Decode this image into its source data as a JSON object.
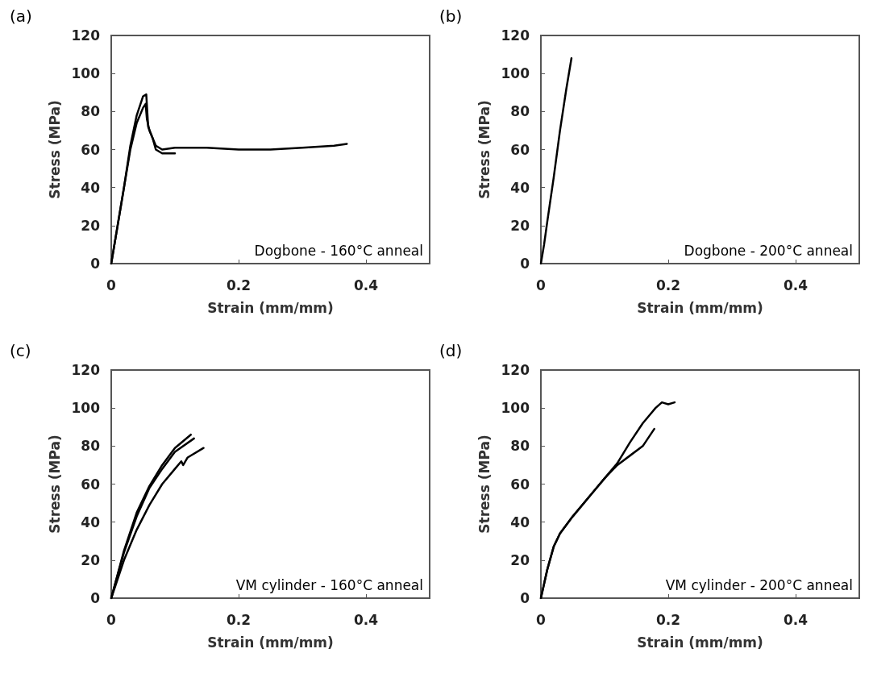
{
  "chart_data": [
    {
      "type": "line",
      "xlabel": "Strain (mm/mm)",
      "ylabel": "Stress (MPa)",
      "annotations": [
        "(a)",
        "Dogbone - 160°C anneal"
      ],
      "xlim": [
        0,
        0.5
      ],
      "xticks": [
        0,
        0.2,
        0.4
      ],
      "ylim": [
        0,
        120
      ],
      "yticks": [
        0,
        20,
        40,
        60,
        80,
        100,
        120
      ],
      "grid": false,
      "marker": "none",
      "line_style": "solid",
      "series": [
        {
          "color": "#000000",
          "x": [
            0,
            0.01,
            0.02,
            0.03,
            0.04,
            0.05,
            0.054,
            0.056,
            0.06,
            0.07,
            0.08,
            0.1,
            0.15,
            0.2,
            0.25,
            0.3,
            0.35,
            0.37
          ],
          "values": [
            0,
            20,
            40,
            60,
            74,
            82,
            84,
            76,
            70,
            62,
            60,
            61,
            61,
            60,
            60,
            61,
            62,
            63
          ]
        },
        {
          "color": "#000000",
          "x": [
            0,
            0.01,
            0.02,
            0.03,
            0.04,
            0.05,
            0.055,
            0.058,
            0.065,
            0.07,
            0.08,
            0.1
          ],
          "values": [
            0,
            20,
            40,
            62,
            78,
            88,
            89,
            72,
            66,
            60,
            58,
            58
          ]
        }
      ]
    },
    {
      "type": "line",
      "xlabel": "Strain (mm/mm)",
      "ylabel": "Stress (MPa)",
      "annotations": [
        "(b)",
        "Dogbone - 200°C anneal"
      ],
      "xlim": [
        0,
        0.5
      ],
      "xticks": [
        0,
        0.2,
        0.4
      ],
      "ylim": [
        0,
        120
      ],
      "yticks": [
        0,
        20,
        40,
        60,
        80,
        100,
        120
      ],
      "grid": false,
      "marker": "none",
      "line_style": "solid",
      "series": [
        {
          "color": "#000000",
          "x": [
            0,
            0.005,
            0.01,
            0.02,
            0.03,
            0.04,
            0.048
          ],
          "values": [
            0,
            10,
            22,
            45,
            70,
            92,
            108
          ]
        }
      ]
    },
    {
      "type": "line",
      "xlabel": "Strain (mm/mm)",
      "ylabel": "Stress (MPa)",
      "annotations": [
        "(c)",
        "VM cylinder - 160°C anneal"
      ],
      "xlim": [
        0,
        0.5
      ],
      "xticks": [
        0,
        0.2,
        0.4
      ],
      "ylim": [
        0,
        120
      ],
      "yticks": [
        0,
        20,
        40,
        60,
        80,
        100,
        120
      ],
      "grid": false,
      "marker": "none",
      "line_style": "solid",
      "series": [
        {
          "color": "#000000",
          "x": [
            0,
            0.02,
            0.04,
            0.06,
            0.08,
            0.1,
            0.125
          ],
          "values": [
            0,
            25,
            45,
            59,
            70,
            79,
            86
          ]
        },
        {
          "color": "#000000",
          "x": [
            0,
            0.02,
            0.04,
            0.06,
            0.08,
            0.1,
            0.13
          ],
          "values": [
            0,
            24,
            43,
            58,
            68,
            77,
            84
          ]
        },
        {
          "color": "#000000",
          "x": [
            0,
            0.02,
            0.04,
            0.06,
            0.08,
            0.1,
            0.11,
            0.113,
            0.12,
            0.145
          ],
          "values": [
            0,
            20,
            36,
            49,
            60,
            68,
            72,
            70,
            74,
            79
          ]
        }
      ]
    },
    {
      "type": "line",
      "xlabel": "Strain (mm/mm)",
      "ylabel": "Stress (MPa)",
      "annotations": [
        "(d)",
        "VM cylinder - 200°C anneal"
      ],
      "xlim": [
        0,
        0.5
      ],
      "xticks": [
        0,
        0.2,
        0.4
      ],
      "ylim": [
        0,
        120
      ],
      "yticks": [
        0,
        20,
        40,
        60,
        80,
        100,
        120
      ],
      "grid": false,
      "marker": "none",
      "line_style": "solid",
      "series": [
        {
          "color": "#000000",
          "x": [
            0,
            0.01,
            0.02,
            0.03,
            0.05,
            0.08,
            0.1,
            0.12,
            0.14,
            0.16,
            0.18,
            0.19,
            0.2,
            0.21
          ],
          "values": [
            0,
            15,
            27,
            34,
            43,
            55,
            63,
            71,
            82,
            92,
            100,
            103,
            102,
            103
          ]
        },
        {
          "color": "#000000",
          "x": [
            0,
            0.01,
            0.02,
            0.03,
            0.05,
            0.08,
            0.1,
            0.12,
            0.14,
            0.16,
            0.178
          ],
          "values": [
            0,
            15,
            27,
            34,
            43,
            55,
            63,
            70,
            75,
            80,
            89
          ]
        }
      ]
    }
  ]
}
